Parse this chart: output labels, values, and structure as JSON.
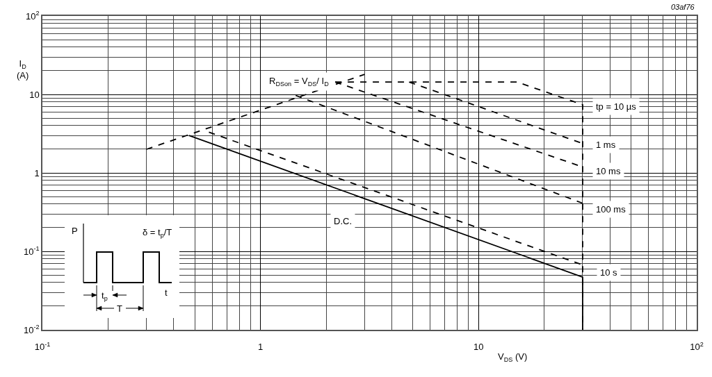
{
  "chart_data": {
    "type": "line",
    "xlabel": "V$_{DS}$ (V)",
    "ylabel": "I$_{D}$\n(A)",
    "log": "xy",
    "grid": true,
    "legend": false,
    "xlim": [
      0.1,
      100
    ],
    "ylim": [
      0.01,
      100
    ],
    "xticks": [
      {
        "value": 0.1,
        "label": "10$^{-1}$"
      },
      1,
      10,
      {
        "value": 100,
        "label": "10$^{2}$"
      }
    ],
    "yticks": [
      {
        "value": 0.01,
        "label": "10$^{-2}$"
      },
      {
        "value": 0.1,
        "label": "10$^{-1}$"
      },
      1,
      10,
      {
        "value": 100,
        "label": "10$^{2}$"
      }
    ],
    "series": [
      {
        "name": "R$_{DSon}$ = V$_{DS}$/ I$_{D}$",
        "color": "#000000",
        "line_style": "dashed",
        "x": [
          0.3,
          3
        ],
        "values": [
          2,
          18
        ]
      },
      {
        "name": "tp = 10 µs",
        "color": "#000000",
        "line_style": "dashed",
        "x": [
          2.2,
          15,
          30,
          30
        ],
        "values": [
          14.4,
          14.4,
          7.4,
          0.01
        ]
      },
      {
        "name": "1 ms",
        "color": "#000000",
        "line_style": "dashed",
        "x": [
          4.8,
          30
        ],
        "values": [
          14.4,
          2.37
        ]
      },
      {
        "name": "10 ms",
        "color": "#000000",
        "line_style": "dashed",
        "x": [
          2.2,
          30
        ],
        "values": [
          14.4,
          1.19
        ]
      },
      {
        "name": "100 ms",
        "color": "#000000",
        "line_style": "dashed",
        "x": [
          1.45,
          30
        ],
        "values": [
          9.7,
          0.41
        ]
      },
      {
        "name": "10 s",
        "color": "#000000",
        "line_style": "dashed",
        "x": [
          0.58,
          30
        ],
        "values": [
          3.3,
          0.067
        ]
      },
      {
        "name": "D.C.",
        "color": "#000000",
        "line_style": "solid",
        "x": [
          0.47,
          30,
          30
        ],
        "values": [
          3,
          0.047,
          0.01
        ]
      }
    ],
    "annotations": [
      "03af76",
      "P",
      "δ = t$_{p}$/T",
      "t",
      "t$_{p}$",
      "T"
    ]
  }
}
